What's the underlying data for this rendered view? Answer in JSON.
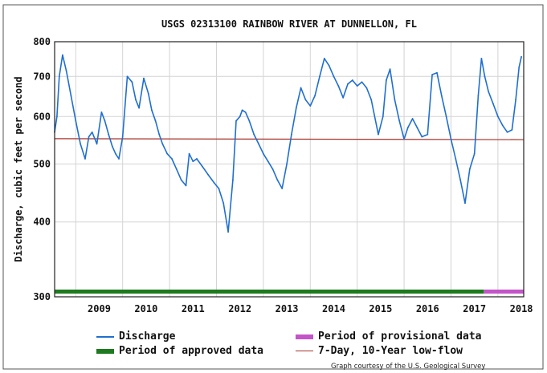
{
  "chart_data": {
    "type": "line",
    "title": "USGS 02313100 RAINBOW RIVER AT DUNNELLON, FL",
    "ylabel": "Discharge, cubic feet per second",
    "xlabel": "",
    "yscale": "log",
    "ylim": [
      300,
      800
    ],
    "yticks": [
      300,
      400,
      500,
      600,
      700,
      800
    ],
    "ytick_labels": [
      "300",
      "400",
      "500",
      "600",
      "700",
      "800"
    ],
    "xlim": [
      2008.55,
      2018.55
    ],
    "xticks": [
      2009,
      2010,
      2011,
      2012,
      2013,
      2014,
      2015,
      2016,
      2017,
      2018
    ],
    "xtick_labels": [
      "2009",
      "2010",
      "2011",
      "2012",
      "2013",
      "2014",
      "2015",
      "2016",
      "2017",
      "2018"
    ],
    "grid": true,
    "series": [
      {
        "name": "Discharge",
        "color": "#1f6fd0",
        "x": [
          2008.55,
          2008.6,
          2008.65,
          2008.72,
          2008.8,
          2008.9,
          2009.0,
          2009.1,
          2009.2,
          2009.28,
          2009.35,
          2009.45,
          2009.55,
          2009.62,
          2009.7,
          2009.78,
          2009.85,
          2009.92,
          2010.0,
          2010.1,
          2010.2,
          2010.28,
          2010.35,
          2010.45,
          2010.55,
          2010.62,
          2010.7,
          2010.78,
          2010.85,
          2010.95,
          2011.05,
          2011.15,
          2011.25,
          2011.35,
          2011.42,
          2011.5,
          2011.58,
          2011.7,
          2011.82,
          2011.95,
          2012.05,
          2012.15,
          2012.25,
          2012.35,
          2012.42,
          2012.5,
          2012.55,
          2012.62,
          2012.7,
          2012.8,
          2012.9,
          2013.0,
          2013.1,
          2013.2,
          2013.3,
          2013.4,
          2013.5,
          2013.6,
          2013.7,
          2013.8,
          2013.9,
          2014.0,
          2014.1,
          2014.2,
          2014.3,
          2014.4,
          2014.5,
          2014.6,
          2014.7,
          2014.8,
          2014.9,
          2015.0,
          2015.1,
          2015.2,
          2015.3,
          2015.45,
          2015.55,
          2015.62,
          2015.7,
          2015.8,
          2015.9,
          2016.0,
          2016.08,
          2016.18,
          2016.28,
          2016.38,
          2016.5,
          2016.6,
          2016.7,
          2016.8,
          2016.9,
          2017.0,
          2017.1,
          2017.2,
          2017.3,
          2017.4,
          2017.5,
          2017.58,
          2017.65,
          2017.72,
          2017.8,
          2017.9,
          2018.0,
          2018.1,
          2018.2,
          2018.3,
          2018.38,
          2018.45,
          2018.5
        ],
        "y": [
          565,
          600,
          700,
          760,
          715,
          650,
          590,
          540,
          510,
          555,
          565,
          540,
          610,
          590,
          560,
          535,
          520,
          510,
          555,
          700,
          685,
          640,
          620,
          695,
          655,
          615,
          590,
          560,
          540,
          520,
          510,
          490,
          470,
          460,
          520,
          505,
          510,
          495,
          480,
          465,
          455,
          430,
          385,
          470,
          590,
          600,
          615,
          610,
          590,
          560,
          540,
          520,
          505,
          490,
          470,
          455,
          500,
          560,
          620,
          670,
          640,
          625,
          650,
          700,
          750,
          730,
          700,
          675,
          645,
          680,
          690,
          675,
          685,
          670,
          640,
          560,
          600,
          690,
          720,
          640,
          590,
          550,
          575,
          595,
          575,
          555,
          560,
          705,
          710,
          650,
          600,
          550,
          510,
          470,
          430,
          490,
          520,
          650,
          750,
          700,
          660,
          630,
          600,
          580,
          565,
          570,
          640,
          725,
          755
        ]
      },
      {
        "name": "7-Day, 10-Year low-flow",
        "color": "#a8322a",
        "x": [
          2008.55,
          2018.55
        ],
        "y": [
          551,
          549
        ]
      }
    ],
    "bands": [
      {
        "name": "Period of approved data",
        "color": "#1e7a1e",
        "x": [
          2008.55,
          2017.7
        ]
      },
      {
        "name": "Period of provisional data",
        "color": "#c355c9",
        "x": [
          2017.7,
          2018.55
        ]
      }
    ]
  },
  "legend": {
    "discharge": "Discharge",
    "approved": "Period of approved data",
    "provisional": "Period of provisional data",
    "lowflow": "7-Day, 10-Year low-flow",
    "colors": {
      "discharge": "#1f6fd0",
      "approved": "#1e7a1e",
      "provisional": "#c355c9",
      "lowflow": "#a8322a"
    }
  },
  "credit": "Graph courtesy of the U.S. Geological Survey"
}
